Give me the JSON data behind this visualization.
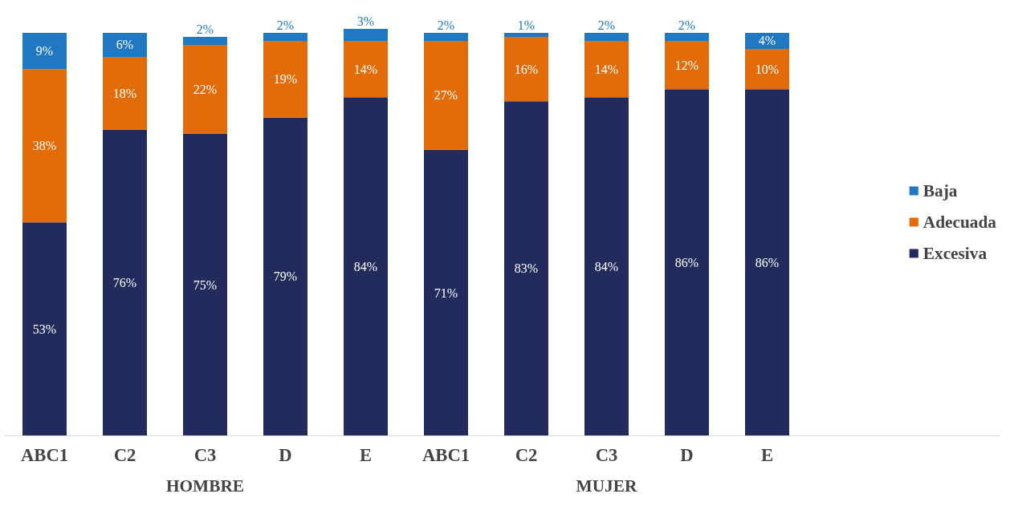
{
  "chart_data": {
    "type": "bar",
    "stacked": true,
    "categories": [
      "ABC1",
      "C2",
      "C3",
      "D",
      "E",
      "ABC1",
      "C2",
      "C3",
      "D",
      "E"
    ],
    "series": [
      {
        "name": "Excesiva",
        "color": "#232b5c",
        "values": [
          53,
          76,
          75,
          79,
          84,
          71,
          83,
          84,
          86,
          86
        ],
        "value_labels": [
          "53%",
          "76%",
          "75%",
          "79%",
          "84%",
          "71%",
          "83%",
          "84%",
          "86%",
          "86%"
        ]
      },
      {
        "name": "Adecuada",
        "color": "#e36c0a",
        "values": [
          38,
          18,
          22,
          19,
          14,
          27,
          16,
          14,
          12,
          10
        ],
        "value_labels": [
          "38%",
          "18%",
          "22%",
          "19%",
          "14%",
          "27%",
          "16%",
          "14%",
          "12%",
          "10%"
        ]
      },
      {
        "name": "Baja",
        "color": "#1f78c1",
        "values": [
          9,
          6,
          2,
          2,
          3,
          2,
          1,
          2,
          2,
          4
        ],
        "value_labels": [
          "9%",
          "6%",
          "2%",
          "2%",
          "3%",
          "2%",
          "1%",
          "2%",
          "2%",
          "4%"
        ]
      }
    ],
    "annotations": [
      "HOMBRE",
      "MUJER"
    ],
    "legend": "right",
    "grid": false
  }
}
